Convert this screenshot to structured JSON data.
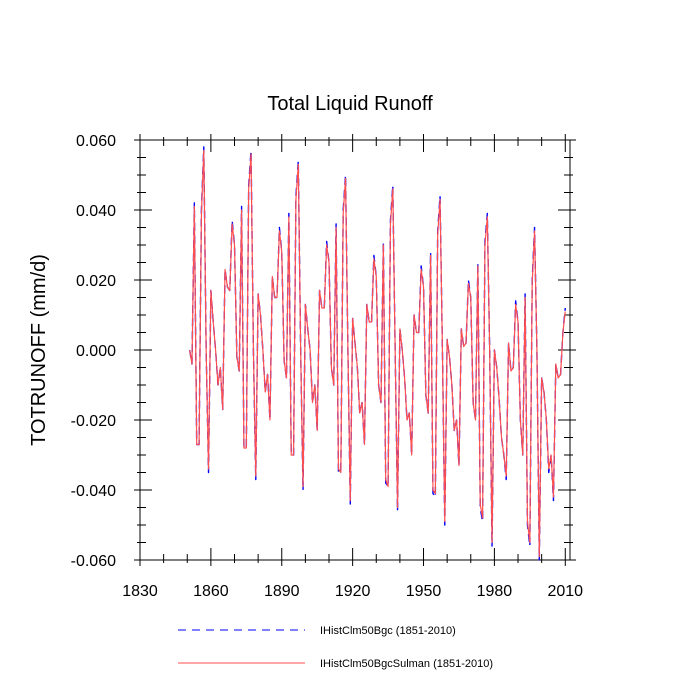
{
  "chart_data": {
    "type": "line",
    "title": "Total Liquid Runoff",
    "ylabel": "TOTRUNOFF  (mm/d)",
    "xlabel": "",
    "xlim": [
      1830,
      2012
    ],
    "ylim": [
      -0.06,
      0.06
    ],
    "x_ticks": [
      1830,
      1860,
      1890,
      1920,
      1950,
      1980,
      2010
    ],
    "y_ticks": [
      0.06,
      0.04,
      0.02,
      0.0,
      -0.02,
      -0.04,
      -0.06
    ],
    "x_tick_labels": [
      "1830",
      "1860",
      "1890",
      "1920",
      "1950",
      "1980",
      "2010"
    ],
    "y_tick_labels": [
      "0.060",
      "0.040",
      "0.020",
      "0.000",
      "-0.020",
      "-0.040",
      "-0.060"
    ],
    "grid": false,
    "legend_position": "bottom",
    "x": [
      1851,
      1852,
      1853,
      1854,
      1855,
      1856,
      1857,
      1858,
      1859,
      1860,
      1861,
      1862,
      1863,
      1864,
      1865,
      1866,
      1867,
      1868,
      1869,
      1870,
      1871,
      1872,
      1873,
      1874,
      1875,
      1876,
      1877,
      1878,
      1879,
      1880,
      1881,
      1882,
      1883,
      1884,
      1885,
      1886,
      1887,
      1888,
      1889,
      1890,
      1891,
      1892,
      1893,
      1894,
      1895,
      1896,
      1897,
      1898,
      1899,
      1900,
      1901,
      1902,
      1903,
      1904,
      1905,
      1906,
      1907,
      1908,
      1909,
      1910,
      1911,
      1912,
      1913,
      1914,
      1915,
      1916,
      1917,
      1918,
      1919,
      1920,
      1921,
      1922,
      1923,
      1924,
      1925,
      1926,
      1927,
      1928,
      1929,
      1930,
      1931,
      1932,
      1933,
      1934,
      1935,
      1936,
      1937,
      1938,
      1939,
      1940,
      1941,
      1942,
      1943,
      1944,
      1945,
      1946,
      1947,
      1948,
      1949,
      1950,
      1951,
      1952,
      1953,
      1954,
      1955,
      1956,
      1957,
      1958,
      1959,
      1960,
      1961,
      1962,
      1963,
      1964,
      1965,
      1966,
      1967,
      1968,
      1969,
      1970,
      1971,
      1972,
      1973,
      1974,
      1975,
      1976,
      1977,
      1978,
      1979,
      1980,
      1981,
      1982,
      1983,
      1984,
      1985,
      1986,
      1987,
      1988,
      1989,
      1990,
      1991,
      1992,
      1993,
      1994,
      1995,
      1996,
      1997,
      1998,
      1999,
      2000,
      2001,
      2002,
      2003,
      2004,
      2005,
      2006,
      2007,
      2008,
      2009,
      2010
    ],
    "series": [
      {
        "name": "IHistClm50Bgc (1851-2010)",
        "color": "#0000ff",
        "style": "dashed",
        "values": [
          0.0,
          -0.004,
          0.042,
          -0.027,
          -0.027,
          0.04,
          0.058,
          0.0,
          -0.035,
          0.017,
          0.008,
          0.0,
          -0.01,
          -0.005,
          -0.017,
          0.023,
          0.018,
          0.017,
          0.037,
          0.03,
          -0.002,
          -0.006,
          0.041,
          -0.028,
          -0.028,
          0.047,
          0.057,
          0.0,
          -0.037,
          0.016,
          0.01,
          0.0,
          -0.012,
          -0.007,
          -0.02,
          0.021,
          0.015,
          0.015,
          0.035,
          0.028,
          -0.003,
          -0.008,
          0.039,
          -0.03,
          -0.03,
          0.044,
          0.054,
          0.0,
          -0.04,
          0.013,
          0.006,
          0.0,
          -0.015,
          -0.01,
          -0.023,
          0.017,
          0.012,
          0.012,
          0.031,
          0.025,
          -0.005,
          -0.01,
          0.036,
          -0.035,
          -0.035,
          0.04,
          0.05,
          0.0,
          -0.044,
          0.009,
          0.002,
          -0.005,
          -0.018,
          -0.015,
          -0.027,
          0.013,
          0.008,
          0.008,
          0.027,
          0.021,
          -0.01,
          -0.015,
          0.031,
          -0.038,
          -0.039,
          0.037,
          0.047,
          0.0,
          -0.046,
          0.006,
          0.0,
          -0.008,
          -0.02,
          -0.018,
          -0.03,
          0.01,
          0.005,
          0.005,
          0.024,
          0.018,
          -0.013,
          -0.018,
          0.028,
          -0.041,
          -0.042,
          0.034,
          0.044,
          0.0,
          -0.05,
          0.003,
          -0.002,
          -0.01,
          -0.023,
          -0.02,
          -0.033,
          0.006,
          0.001,
          0.002,
          0.02,
          0.015,
          -0.015,
          -0.02,
          0.025,
          -0.045,
          -0.049,
          0.031,
          0.039,
          0.0,
          -0.056,
          0.0,
          -0.005,
          -0.014,
          -0.025,
          -0.03,
          -0.037,
          0.002,
          -0.006,
          -0.005,
          0.014,
          0.008,
          -0.02,
          -0.03,
          0.016,
          -0.05,
          -0.056,
          0.02,
          0.035,
          0.0,
          -0.06,
          -0.008,
          -0.012,
          -0.02,
          -0.035,
          -0.03,
          -0.043,
          -0.004,
          -0.008,
          -0.007,
          0.005,
          0.012
        ]
      },
      {
        "name": "IHistClm50BgcSulman (1851-2010)",
        "color": "#ff4f4f",
        "style": "solid",
        "values": [
          0.0,
          -0.004,
          0.041,
          -0.027,
          -0.027,
          0.039,
          0.057,
          0.0,
          -0.034,
          0.017,
          0.008,
          0.0,
          -0.01,
          -0.005,
          -0.017,
          0.023,
          0.018,
          0.017,
          0.036,
          0.03,
          -0.002,
          -0.006,
          0.04,
          -0.028,
          -0.028,
          0.046,
          0.056,
          0.0,
          -0.036,
          0.016,
          0.01,
          0.0,
          -0.012,
          -0.007,
          -0.02,
          0.021,
          0.015,
          0.015,
          0.034,
          0.028,
          -0.003,
          -0.008,
          0.038,
          -0.03,
          -0.03,
          0.043,
          0.053,
          0.0,
          -0.039,
          0.013,
          0.006,
          0.0,
          -0.015,
          -0.01,
          -0.023,
          0.017,
          0.012,
          0.012,
          0.03,
          0.025,
          -0.005,
          -0.01,
          0.035,
          -0.034,
          -0.035,
          0.039,
          0.049,
          0.0,
          -0.043,
          0.009,
          0.002,
          -0.005,
          -0.018,
          -0.015,
          -0.027,
          0.013,
          0.008,
          0.008,
          0.026,
          0.021,
          -0.01,
          -0.015,
          0.03,
          -0.037,
          -0.039,
          0.036,
          0.046,
          0.0,
          -0.045,
          0.006,
          0.0,
          -0.008,
          -0.02,
          -0.018,
          -0.03,
          0.01,
          0.005,
          0.005,
          0.023,
          0.018,
          -0.013,
          -0.018,
          0.027,
          -0.04,
          -0.041,
          0.033,
          0.043,
          0.0,
          -0.049,
          0.003,
          -0.002,
          -0.01,
          -0.023,
          -0.02,
          -0.033,
          0.006,
          0.001,
          0.002,
          0.019,
          0.015,
          -0.015,
          -0.02,
          0.024,
          -0.044,
          -0.048,
          0.03,
          0.038,
          0.0,
          -0.055,
          0.0,
          -0.005,
          -0.014,
          -0.025,
          -0.03,
          -0.036,
          0.002,
          -0.006,
          -0.005,
          0.013,
          0.008,
          -0.02,
          -0.03,
          0.015,
          -0.049,
          -0.055,
          0.019,
          0.034,
          0.0,
          -0.059,
          -0.008,
          -0.012,
          -0.02,
          -0.034,
          -0.03,
          -0.042,
          -0.004,
          -0.008,
          -0.007,
          0.005,
          0.011
        ]
      }
    ]
  }
}
